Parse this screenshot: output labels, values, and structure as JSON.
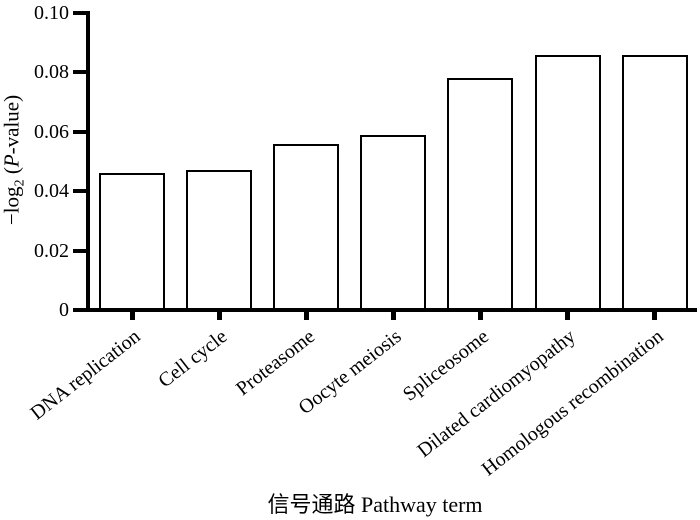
{
  "chart_data": {
    "type": "bar",
    "categories": [
      "DNA replication",
      "Cell cycle",
      "Proteasome",
      "Oocyte meiosis",
      "Spliceosome",
      "Dilated cardiomyopathy",
      "Homologous recombination"
    ],
    "values": [
      0.046,
      0.047,
      0.056,
      0.059,
      0.078,
      0.086,
      0.086
    ],
    "xlabel": "信号通路 Pathway term",
    "ylabel": "−log₂ (P-value)",
    "ylabel_parts": {
      "prefix": "−log",
      "sub": "2",
      "mid": " (",
      "p_italic": "P",
      "suffix": "-value)"
    },
    "ylim": [
      0,
      0.1
    ],
    "yticks": [
      {
        "value": 0,
        "label": "0"
      },
      {
        "value": 0.02,
        "label": "0.02"
      },
      {
        "value": 0.04,
        "label": "0.04"
      },
      {
        "value": 0.06,
        "label": "0.06"
      },
      {
        "value": 0.08,
        "label": "0.08"
      },
      {
        "value": 0.1,
        "label": "0.10"
      }
    ],
    "grid": false,
    "legend": false,
    "category_label_rotation_deg": -38,
    "colors": {
      "bar_fill": "#ffffff",
      "bar_border": "#000000",
      "axis": "#000000",
      "background": "#ffffff",
      "text": "#000000"
    }
  }
}
